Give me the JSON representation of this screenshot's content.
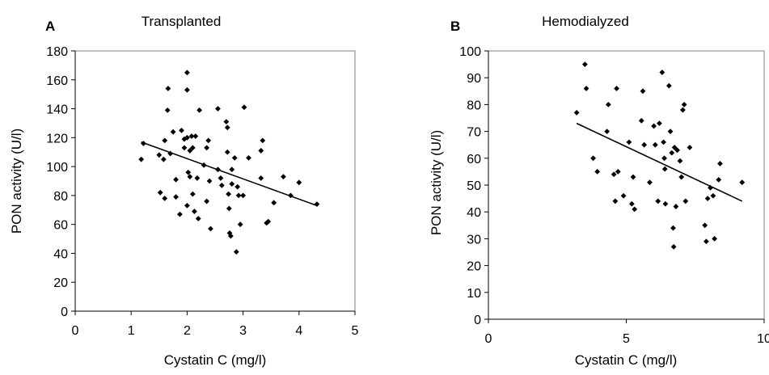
{
  "chart_data": [
    {
      "type": "scatter",
      "panel_letter": "A",
      "title": "Transplanted",
      "xlabel": "Cystatin C (mg/l)",
      "ylabel": "PON activity (U/l)",
      "xlim": [
        0,
        5
      ],
      "ylim": [
        0,
        180
      ],
      "xticks": [
        0,
        1,
        2,
        3,
        4,
        5
      ],
      "yticks": [
        0,
        20,
        40,
        60,
        80,
        100,
        120,
        140,
        160,
        180
      ],
      "grid": false,
      "legend": "none",
      "marker_color": "#000000",
      "points": [
        [
          1.18,
          105
        ],
        [
          1.22,
          116
        ],
        [
          1.5,
          108
        ],
        [
          1.52,
          82
        ],
        [
          1.58,
          105
        ],
        [
          1.6,
          118
        ],
        [
          1.6,
          78
        ],
        [
          1.65,
          139
        ],
        [
          1.66,
          154
        ],
        [
          1.7,
          109
        ],
        [
          1.75,
          124
        ],
        [
          1.8,
          91
        ],
        [
          1.8,
          79
        ],
        [
          1.87,
          67
        ],
        [
          1.9,
          125
        ],
        [
          1.95,
          113
        ],
        [
          1.95,
          119
        ],
        [
          2.0,
          153
        ],
        [
          2.0,
          165
        ],
        [
          2.0,
          120
        ],
        [
          2.0,
          73
        ],
        [
          2.02,
          96
        ],
        [
          2.05,
          111
        ],
        [
          2.05,
          93
        ],
        [
          2.08,
          121
        ],
        [
          2.1,
          113
        ],
        [
          2.1,
          81
        ],
        [
          2.13,
          69
        ],
        [
          2.15,
          121
        ],
        [
          2.18,
          92
        ],
        [
          2.2,
          64
        ],
        [
          2.22,
          139
        ],
        [
          2.3,
          101
        ],
        [
          2.35,
          113
        ],
        [
          2.35,
          76
        ],
        [
          2.38,
          118
        ],
        [
          2.4,
          90
        ],
        [
          2.42,
          57
        ],
        [
          2.55,
          140
        ],
        [
          2.55,
          98
        ],
        [
          2.6,
          92
        ],
        [
          2.62,
          87
        ],
        [
          2.7,
          131
        ],
        [
          2.72,
          127
        ],
        [
          2.72,
          110
        ],
        [
          2.74,
          81
        ],
        [
          2.75,
          71
        ],
        [
          2.76,
          54
        ],
        [
          2.78,
          52
        ],
        [
          2.8,
          88
        ],
        [
          2.8,
          98
        ],
        [
          2.85,
          106
        ],
        [
          2.88,
          41
        ],
        [
          2.9,
          86
        ],
        [
          2.92,
          80
        ],
        [
          2.95,
          60
        ],
        [
          3.0,
          80
        ],
        [
          3.02,
          141
        ],
        [
          3.1,
          106
        ],
        [
          3.32,
          92
        ],
        [
          3.32,
          111
        ],
        [
          3.35,
          118
        ],
        [
          3.42,
          61
        ],
        [
          3.45,
          62
        ],
        [
          3.55,
          75
        ],
        [
          3.72,
          93
        ],
        [
          3.85,
          80
        ],
        [
          4.0,
          89
        ],
        [
          4.32,
          74
        ]
      ],
      "trendline": {
        "x": [
          1.18,
          4.32
        ],
        "y": [
          117,
          73
        ]
      }
    },
    {
      "type": "scatter",
      "panel_letter": "B",
      "title": "Hemodialyzed",
      "xlabel": "Cystatin C (mg/l)",
      "ylabel": "PON activity (U/l)",
      "xlim": [
        0,
        10
      ],
      "ylim": [
        0,
        100
      ],
      "xticks": [
        0,
        5,
        10
      ],
      "yticks": [
        0,
        10,
        20,
        30,
        40,
        50,
        60,
        70,
        80,
        90,
        100
      ],
      "grid": false,
      "legend": "none",
      "marker_color": "#000000",
      "points": [
        [
          3.2,
          77
        ],
        [
          3.5,
          95
        ],
        [
          3.55,
          86
        ],
        [
          3.8,
          60
        ],
        [
          3.95,
          55
        ],
        [
          4.3,
          70
        ],
        [
          4.35,
          80
        ],
        [
          4.55,
          54
        ],
        [
          4.6,
          44
        ],
        [
          4.65,
          86
        ],
        [
          4.7,
          55
        ],
        [
          4.9,
          46
        ],
        [
          5.1,
          66
        ],
        [
          5.2,
          43
        ],
        [
          5.25,
          53
        ],
        [
          5.3,
          41
        ],
        [
          5.55,
          74
        ],
        [
          5.6,
          85
        ],
        [
          5.65,
          65
        ],
        [
          5.85,
          51
        ],
        [
          6.0,
          72
        ],
        [
          6.05,
          65
        ],
        [
          6.15,
          44
        ],
        [
          6.2,
          73
        ],
        [
          6.3,
          92
        ],
        [
          6.35,
          66
        ],
        [
          6.38,
          60
        ],
        [
          6.4,
          56
        ],
        [
          6.42,
          43
        ],
        [
          6.55,
          87
        ],
        [
          6.6,
          70
        ],
        [
          6.65,
          62
        ],
        [
          6.7,
          34
        ],
        [
          6.72,
          27
        ],
        [
          6.75,
          64
        ],
        [
          6.8,
          42
        ],
        [
          6.85,
          63
        ],
        [
          6.95,
          59
        ],
        [
          7.0,
          53
        ],
        [
          7.05,
          78
        ],
        [
          7.1,
          80
        ],
        [
          7.15,
          44
        ],
        [
          7.3,
          64
        ],
        [
          7.85,
          35
        ],
        [
          7.9,
          29
        ],
        [
          7.95,
          45
        ],
        [
          8.05,
          49
        ],
        [
          8.15,
          46
        ],
        [
          8.2,
          30
        ],
        [
          8.35,
          52
        ],
        [
          8.4,
          58
        ],
        [
          9.2,
          51
        ]
      ],
      "trendline": {
        "x": [
          3.2,
          9.2
        ],
        "y": [
          73,
          44
        ]
      }
    }
  ]
}
